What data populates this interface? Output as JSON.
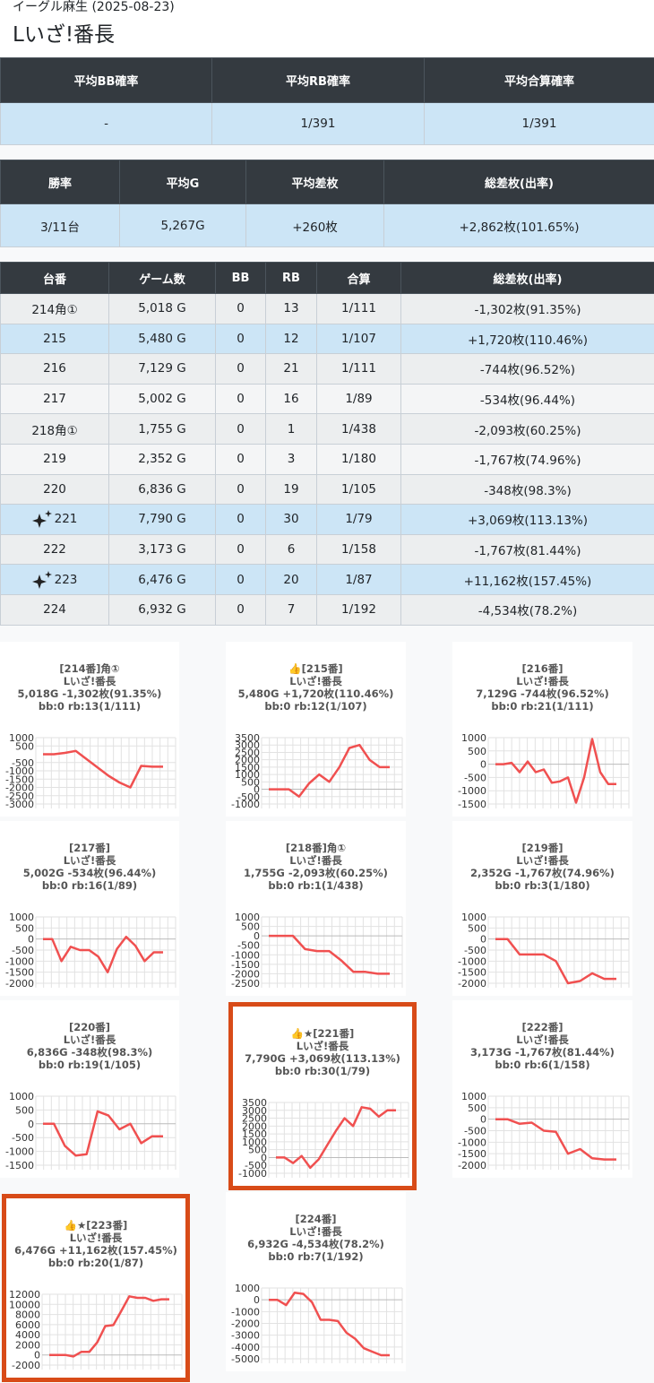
{
  "header": {
    "subtitle": "イーグル麻生 (2025-08-23)",
    "title": "Lいざ!番長"
  },
  "summary1": {
    "headers": [
      "平均BB確率",
      "平均RB確率",
      "平均合算確率"
    ],
    "values": [
      "-",
      "1/391",
      "1/391"
    ]
  },
  "summary2": {
    "headers": [
      "勝率",
      "平均G",
      "平均差枚",
      "総差枚(出率)"
    ],
    "values": [
      "3/11台",
      "5,267G",
      "+260枚",
      "+2,862枚(101.65%)"
    ]
  },
  "machines": {
    "headers": [
      "台番",
      "ゲーム数",
      "BB",
      "RB",
      "合算",
      "総差枚(出率)"
    ],
    "rows": [
      {
        "no": "214角①",
        "games": "5,018 G",
        "bb": "0",
        "rb": "13",
        "combined": "1/111",
        "diff": "-1,302枚(91.35%)",
        "highlight": false,
        "sparkle": false
      },
      {
        "no": "215",
        "games": "5,480 G",
        "bb": "0",
        "rb": "12",
        "combined": "1/107",
        "diff": "+1,720枚(110.46%)",
        "highlight": true,
        "sparkle": false
      },
      {
        "no": "216",
        "games": "7,129 G",
        "bb": "0",
        "rb": "21",
        "combined": "1/111",
        "diff": "-744枚(96.52%)",
        "highlight": false,
        "sparkle": false
      },
      {
        "no": "217",
        "games": "5,002 G",
        "bb": "0",
        "rb": "16",
        "combined": "1/89",
        "diff": "-534枚(96.44%)",
        "highlight": false,
        "sparkle": false
      },
      {
        "no": "218角①",
        "games": "1,755 G",
        "bb": "0",
        "rb": "1",
        "combined": "1/438",
        "diff": "-2,093枚(60.25%)",
        "highlight": false,
        "sparkle": false
      },
      {
        "no": "219",
        "games": "2,352 G",
        "bb": "0",
        "rb": "3",
        "combined": "1/180",
        "diff": "-1,767枚(74.96%)",
        "highlight": false,
        "sparkle": false
      },
      {
        "no": "220",
        "games": "6,836 G",
        "bb": "0",
        "rb": "19",
        "combined": "1/105",
        "diff": "-348枚(98.3%)",
        "highlight": false,
        "sparkle": false
      },
      {
        "no": "221",
        "games": "7,790 G",
        "bb": "0",
        "rb": "30",
        "combined": "1/79",
        "diff": "+3,069枚(113.13%)",
        "highlight": true,
        "sparkle": true
      },
      {
        "no": "222",
        "games": "3,173 G",
        "bb": "0",
        "rb": "6",
        "combined": "1/158",
        "diff": "-1,767枚(81.44%)",
        "highlight": false,
        "sparkle": false
      },
      {
        "no": "223",
        "games": "6,476 G",
        "bb": "0",
        "rb": "20",
        "combined": "1/87",
        "diff": "+11,162枚(157.45%)",
        "highlight": true,
        "sparkle": true
      },
      {
        "no": "224",
        "games": "6,932 G",
        "bb": "0",
        "rb": "7",
        "combined": "1/192",
        "diff": "-4,534枚(78.2%)",
        "highlight": false,
        "sparkle": false
      }
    ]
  },
  "colors": {
    "header_bg": "#343a40",
    "row_blue": "#cce5f6",
    "line": "#f05050",
    "highlight_border": "#d84b18",
    "positive_text": "#3d8fd6"
  },
  "chart_data": [
    {
      "type": "line",
      "lines": [
        "[214番]角①",
        "Lいざ!番長",
        "5,018G -1,302枚(91.35%)",
        "bb:0 rb:13(1/111)"
      ],
      "yticks": [
        1000,
        500,
        -500,
        -1000,
        -1500,
        -2000,
        -2500,
        -3000
      ],
      "ylim": [
        -3000,
        1000
      ],
      "values": [
        0,
        0,
        80,
        200,
        -300,
        -800,
        -1300,
        -1700,
        -2000,
        -700,
        -750,
        -750
      ]
    },
    {
      "type": "line",
      "lines": [
        "👍[215番]",
        "Lいざ!番長",
        "5,480G +1,720枚(110.46%)",
        "bb:0 rb:12(1/107)"
      ],
      "yticks": [
        3500,
        3000,
        2500,
        2000,
        1500,
        1000,
        500,
        0,
        -500,
        -1000
      ],
      "ylim": [
        -1000,
        3500
      ],
      "values": [
        0,
        0,
        0,
        -500,
        400,
        1000,
        500,
        1500,
        2800,
        3000,
        2000,
        1500,
        1500
      ]
    },
    {
      "type": "line",
      "lines": [
        "[216番]",
        "Lいざ!番長",
        "7,129G -744枚(96.52%)",
        "bb:0 rb:21(1/111)"
      ],
      "yticks": [
        1000,
        500,
        0,
        -500,
        -1000,
        -1500
      ],
      "ylim": [
        -1500,
        1000
      ],
      "values": [
        0,
        0,
        50,
        -300,
        100,
        -300,
        -200,
        -700,
        -650,
        -500,
        -1450,
        -500,
        950,
        -300,
        -750,
        -750
      ]
    },
    {
      "type": "line",
      "lines": [
        "[217番]",
        "Lいざ!番長",
        "5,002G -534枚(96.44%)",
        "bb:0 rb:16(1/89)"
      ],
      "yticks": [
        1000,
        500,
        0,
        -500,
        -1000,
        -1500,
        -2000
      ],
      "ylim": [
        -2000,
        1000
      ],
      "values": [
        0,
        0,
        -1000,
        -350,
        -500,
        -500,
        -800,
        -1500,
        -450,
        100,
        -300,
        -1000,
        -600,
        -600
      ]
    },
    {
      "type": "line",
      "lines": [
        "[218番]角①",
        "Lいざ!番長",
        "1,755G -2,093枚(60.25%)",
        "bb:0 rb:1(1/438)"
      ],
      "yticks": [
        1000,
        500,
        0,
        -500,
        -1000,
        -1500,
        -2000,
        -2500
      ],
      "ylim": [
        -2500,
        1000
      ],
      "values": [
        0,
        0,
        0,
        -700,
        -800,
        -800,
        -1300,
        -1900,
        -1900,
        -2000,
        -2000
      ]
    },
    {
      "type": "line",
      "lines": [
        "[219番]",
        "Lいざ!番長",
        "2,352G -1,767枚(74.96%)",
        "bb:0 rb:3(1/180)"
      ],
      "yticks": [
        1000,
        500,
        0,
        -500,
        -1000,
        -1500,
        -2000
      ],
      "ylim": [
        -2000,
        1000
      ],
      "values": [
        0,
        0,
        -700,
        -700,
        -700,
        -1000,
        -2000,
        -1900,
        -1550,
        -1800,
        -1800
      ]
    },
    {
      "type": "line",
      "lines": [
        "[220番]",
        "Lいざ!番長",
        "6,836G -348枚(98.3%)",
        "bb:0 rb:19(1/105)"
      ],
      "yticks": [
        1000,
        500,
        0,
        -500,
        -1000,
        -1500
      ],
      "ylim": [
        -1500,
        1000
      ],
      "values": [
        0,
        0,
        -800,
        -1150,
        -1100,
        450,
        300,
        -200,
        0,
        -700,
        -450,
        -450
      ]
    },
    {
      "type": "line",
      "lines": [
        "👍★[221番]",
        "Lいざ!番長",
        "7,790G +3,069枚(113.13%)",
        "bb:0 rb:30(1/79)"
      ],
      "yticks": [
        3500,
        3000,
        2500,
        2000,
        1500,
        1000,
        500,
        0,
        -500,
        -1000
      ],
      "ylim": [
        -1000,
        3500
      ],
      "values": [
        0,
        0,
        -350,
        100,
        -650,
        -100,
        800,
        1700,
        2500,
        2000,
        3200,
        3100,
        2600,
        3000,
        3000
      ]
    },
    {
      "type": "line",
      "lines": [
        "[222番]",
        "Lいざ!番長",
        "3,173G -1,767枚(81.44%)",
        "bb:0 rb:6(1/158)"
      ],
      "yticks": [
        1000,
        500,
        0,
        -500,
        -1000,
        -1500,
        -2000
      ],
      "ylim": [
        -2000,
        1000
      ],
      "values": [
        0,
        0,
        -200,
        -150,
        -500,
        -550,
        -1500,
        -1300,
        -1700,
        -1750,
        -1750
      ]
    },
    {
      "type": "line",
      "lines": [
        "👍★[223番]",
        "Lいざ!番長",
        "6,476G +11,162枚(157.45%)",
        "bb:0 rb:20(1/87)"
      ],
      "yticks": [
        12000,
        10000,
        8000,
        6000,
        4000,
        2000,
        0,
        -2000
      ],
      "ylim": [
        -2000,
        12000
      ],
      "values": [
        0,
        0,
        0,
        -300,
        600,
        600,
        2500,
        5700,
        5900,
        8700,
        11600,
        11300,
        11300,
        10700,
        11000,
        11000
      ]
    },
    {
      "type": "line",
      "lines": [
        "[224番]",
        "Lいざ!番長",
        "6,932G -4,534枚(78.2%)",
        "bb:0 rb:7(1/192)"
      ],
      "yticks": [
        1000,
        0,
        -1000,
        -2000,
        -3000,
        -4000,
        -5000
      ],
      "ylim": [
        -5000,
        1000
      ],
      "values": [
        0,
        0,
        -450,
        600,
        500,
        -200,
        -1700,
        -1700,
        -1800,
        -2800,
        -3300,
        -4100,
        -4400,
        -4700,
        -4700
      ]
    }
  ]
}
